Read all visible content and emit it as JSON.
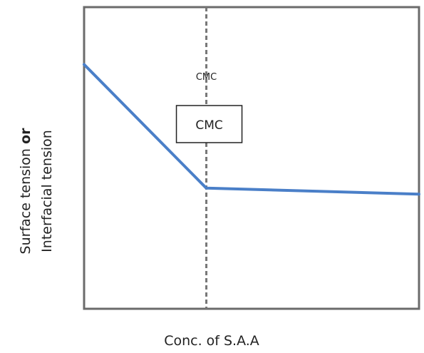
{
  "chart_data": {
    "type": "line",
    "xlabel": "Conc. of S.A.A",
    "ylabel_line1_pre": "Surface tension ",
    "ylabel_line1_bold": "or",
    "ylabel_line2": "Interfacial tension",
    "cmc_marker_label": "CMC",
    "cmc_box_label": "CMC",
    "xlim": [
      0,
      100
    ],
    "ylim": [
      0,
      100
    ],
    "cmc_x": 36.5,
    "series": [
      {
        "x": [
          0,
          36.5,
          100
        ],
        "y": [
          81,
          40,
          38
        ]
      }
    ],
    "grid": false
  },
  "colors": {
    "line": "#4a7fc8",
    "axis": "#6b6b6b",
    "cmc_line": "#777777",
    "box_border": "#222222"
  }
}
